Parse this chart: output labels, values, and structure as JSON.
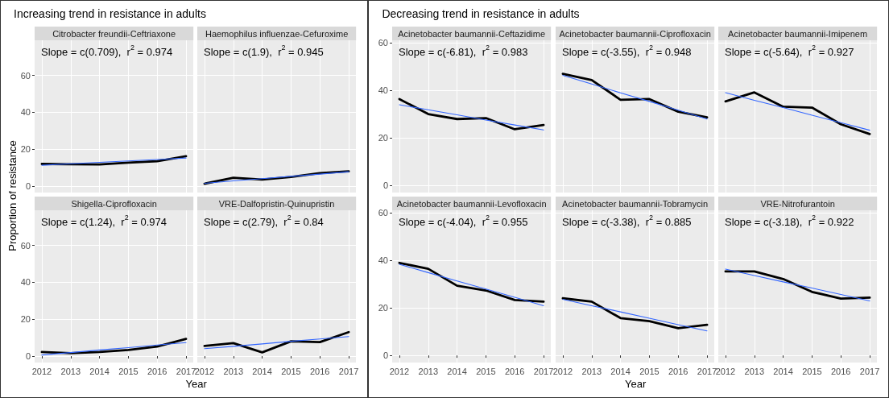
{
  "chart_data": [
    {
      "type": "other",
      "title": "Increasing trend in resistance in adults",
      "xlabel": "Year",
      "ylabel": "Proportion of resistance"
    },
    {
      "type": "line",
      "title": "Citrobacter freundii-Ceftriaxone",
      "annotations": [
        "Slope = c(0.709),  r$^{2}$ = 0.974"
      ],
      "x": [
        2012,
        2013,
        2014,
        2015,
        2016,
        2017
      ],
      "xlim": [
        2011.75,
        2017.25
      ],
      "xticks": [
        2012,
        2013,
        2014,
        2015,
        2016,
        2017
      ],
      "ylim": [
        -3.5,
        79
      ],
      "yticks": [
        0,
        20,
        40,
        60
      ],
      "grid": true,
      "marker": "none",
      "tick_labels": "y",
      "series": [
        {
          "color": "#000000",
          "values": [
            12,
            11.8,
            11.7,
            12.7,
            13.5,
            16.2
          ]
        },
        {
          "color": "#3366ff",
          "values": [
            11.3,
            12.1,
            12.9,
            13.6,
            14.4,
            15.2
          ]
        }
      ]
    },
    {
      "type": "line",
      "title": "Haemophilus influenzae-Cefuroxime",
      "annotations": [
        "Slope = c(1.9),  r$^{2}$ = 0.945"
      ],
      "x": [
        2012,
        2013,
        2014,
        2015,
        2016,
        2017
      ],
      "xlim": [
        2011.75,
        2017.25
      ],
      "xticks": [
        2012,
        2013,
        2014,
        2015,
        2016,
        2017
      ],
      "ylim": [
        -3.5,
        79
      ],
      "yticks": [
        0,
        20,
        40,
        60
      ],
      "grid": true,
      "marker": "none",
      "tick_labels": false,
      "series": [
        {
          "color": "#000000",
          "values": [
            1.3,
            4.5,
            3.5,
            5,
            7,
            8
          ]
        },
        {
          "color": "#3366ff",
          "values": [
            1.5,
            2.8,
            4,
            5.3,
            6.5,
            7.8
          ]
        }
      ]
    },
    {
      "type": "line",
      "title": "Shigella-Ciprofloxacin",
      "annotations": [
        "Slope = c(1.24),  r$^{2}$ = 0.974"
      ],
      "x": [
        2012,
        2013,
        2014,
        2015,
        2016,
        2017
      ],
      "xlim": [
        2011.75,
        2017.25
      ],
      "xticks": [
        2012,
        2013,
        2014,
        2015,
        2016,
        2017
      ],
      "ylim": [
        -3.5,
        79
      ],
      "yticks": [
        0,
        20,
        40,
        60
      ],
      "grid": true,
      "marker": "none",
      "series": [
        {
          "color": "#000000",
          "values": [
            2.2,
            1.6,
            2.2,
            3.3,
            5.2,
            9.3
          ]
        },
        {
          "color": "#3366ff",
          "values": [
            0.6,
            1.9,
            3.3,
            4.6,
            6,
            7.3
          ]
        }
      ]
    },
    {
      "type": "line",
      "title": "VRE-Dalfopristin-Quinupristin",
      "annotations": [
        "Slope = c(2.79),  r$^{2}$ = 0.84"
      ],
      "x": [
        2012,
        2013,
        2014,
        2015,
        2016,
        2017
      ],
      "xlim": [
        2011.75,
        2017.25
      ],
      "xticks": [
        2012,
        2013,
        2014,
        2015,
        2016,
        2017
      ],
      "ylim": [
        -3.5,
        79
      ],
      "yticks": [
        0,
        20,
        40,
        60
      ],
      "grid": true,
      "marker": "none",
      "tick_labels": "x",
      "series": [
        {
          "color": "#000000",
          "values": [
            5.5,
            7,
            2,
            8,
            7.6,
            13
          ]
        },
        {
          "color": "#3366ff",
          "values": [
            4,
            5.3,
            6.6,
            8,
            9.3,
            10.6
          ]
        }
      ]
    },
    {
      "type": "other",
      "title": "Decreasing trend in resistance in adults",
      "xlabel": "Year"
    },
    {
      "type": "line",
      "title": "Acinetobacter baumannii-Ceftazidime",
      "annotations": [
        "Slope = c(-6.81),  r$^{2}$ = 0.983"
      ],
      "x": [
        2012,
        2013,
        2014,
        2015,
        2016,
        2017
      ],
      "xlim": [
        2011.75,
        2017.25
      ],
      "xticks": [
        2012,
        2013,
        2014,
        2015,
        2016,
        2017
      ],
      "ylim": [
        -3,
        61
      ],
      "yticks": [
        0,
        20,
        40,
        60
      ],
      "grid": true,
      "marker": "none",
      "tick_labels": "y",
      "series": [
        {
          "color": "#000000",
          "values": [
            36.3,
            30,
            27.9,
            28.3,
            23.6,
            25.4
          ]
        },
        {
          "color": "#3366ff",
          "values": [
            33.9,
            31.8,
            29.7,
            27.5,
            25.4,
            23.3
          ]
        }
      ]
    },
    {
      "type": "line",
      "title": "Acinetobacter baumannii-Ciprofloxacin",
      "annotations": [
        "Slope = c(-3.55),  r$^{2}$ = 0.948"
      ],
      "x": [
        2012,
        2013,
        2014,
        2015,
        2016,
        2017
      ],
      "xlim": [
        2011.75,
        2017.25
      ],
      "xticks": [
        2012,
        2013,
        2014,
        2015,
        2016,
        2017
      ],
      "ylim": [
        -3,
        61
      ],
      "yticks": [
        0,
        20,
        40,
        60
      ],
      "grid": true,
      "marker": "none",
      "tick_labels": false,
      "series": [
        {
          "color": "#000000",
          "values": [
            46.9,
            44.3,
            36,
            36.3,
            31,
            28.6
          ]
        },
        {
          "color": "#3366ff",
          "values": [
            46.3,
            42.6,
            38.9,
            35.3,
            31.6,
            27.9
          ]
        }
      ]
    },
    {
      "type": "line",
      "title": "Acinetobacter baumannii-Imipenem",
      "annotations": [
        "Slope = c(-5.64),  r$^{2}$ = 0.927"
      ],
      "x": [
        2012,
        2013,
        2014,
        2015,
        2016,
        2017
      ],
      "xlim": [
        2011.75,
        2017.25
      ],
      "xticks": [
        2012,
        2013,
        2014,
        2015,
        2016,
        2017
      ],
      "ylim": [
        -3,
        61
      ],
      "yticks": [
        0,
        20,
        40,
        60
      ],
      "grid": true,
      "marker": "none",
      "tick_labels": false,
      "series": [
        {
          "color": "#000000",
          "values": [
            35.3,
            39.1,
            33.1,
            32.7,
            25.7,
            21.6
          ]
        },
        {
          "color": "#3366ff",
          "values": [
            39,
            35.8,
            32.7,
            29.5,
            26.4,
            23.2
          ]
        }
      ]
    },
    {
      "type": "line",
      "title": "Acinetobacter baumannii-Levofloxacin",
      "annotations": [
        "Slope = c(-4.04),  r$^{2}$ = 0.955"
      ],
      "x": [
        2012,
        2013,
        2014,
        2015,
        2016,
        2017
      ],
      "xlim": [
        2011.75,
        2017.25
      ],
      "xticks": [
        2012,
        2013,
        2014,
        2015,
        2016,
        2017
      ],
      "ylim": [
        -3,
        61
      ],
      "yticks": [
        0,
        20,
        40,
        60
      ],
      "grid": true,
      "marker": "none",
      "series": [
        {
          "color": "#000000",
          "values": [
            38.9,
            36.4,
            29.3,
            27.3,
            23.3,
            22.6
          ]
        },
        {
          "color": "#3366ff",
          "values": [
            38.3,
            34.8,
            31.3,
            27.9,
            24.4,
            20.9
          ]
        }
      ]
    },
    {
      "type": "line",
      "title": "Acinetobacter baumannii-Tobramycin",
      "annotations": [
        "Slope = c(-3.38),  r$^{2}$ = 0.885"
      ],
      "x": [
        2012,
        2013,
        2014,
        2015,
        2016,
        2017
      ],
      "xlim": [
        2011.75,
        2017.25
      ],
      "xticks": [
        2012,
        2013,
        2014,
        2015,
        2016,
        2017
      ],
      "ylim": [
        -3,
        61
      ],
      "yticks": [
        0,
        20,
        40,
        60
      ],
      "grid": true,
      "marker": "none",
      "tick_labels": "x",
      "series": [
        {
          "color": "#000000",
          "values": [
            24,
            22.6,
            15.7,
            14.4,
            11.4,
            12.9
          ]
        },
        {
          "color": "#3366ff",
          "values": [
            23.6,
            20.9,
            18.3,
            15.6,
            12.9,
            10.3
          ]
        }
      ]
    },
    {
      "type": "line",
      "title": "VRE-Nitrofurantoin",
      "annotations": [
        "Slope = c(-3.18),  r$^{2}$ = 0.922"
      ],
      "x": [
        2012,
        2013,
        2014,
        2015,
        2016,
        2017
      ],
      "xlim": [
        2011.75,
        2017.25
      ],
      "xticks": [
        2012,
        2013,
        2014,
        2015,
        2016,
        2017
      ],
      "ylim": [
        -3,
        61
      ],
      "yticks": [
        0,
        20,
        40,
        60
      ],
      "grid": true,
      "marker": "none",
      "tick_labels": "x",
      "series": [
        {
          "color": "#000000",
          "values": [
            35.3,
            35.3,
            32.1,
            26.7,
            23.9,
            24.3
          ]
        },
        {
          "color": "#3366ff",
          "values": [
            36.3,
            33.6,
            30.9,
            28.3,
            25.6,
            22.9
          ]
        }
      ]
    }
  ]
}
